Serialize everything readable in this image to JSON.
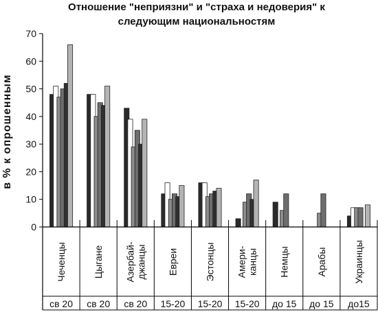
{
  "chart_data": {
    "type": "bar",
    "title_lines": [
      "Отношение \"неприязни\" и \"страха и недоверия\" к",
      "следующим национальностям"
    ],
    "ylabel": "в % к опрошенным",
    "ylim": [
      0,
      70
    ],
    "yticks": [
      0,
      10,
      20,
      30,
      40,
      50,
      60,
      70
    ],
    "grid": false,
    "categories": [
      "Чеченцы",
      "Цыгане",
      "Азербай-джанцы",
      "Евреи",
      "Эстонцы",
      "Амери-канцы",
      "Немцы",
      "Арабы",
      "Украинцы"
    ],
    "category_lines": [
      [
        "Чеченцы"
      ],
      [
        "Цыгане"
      ],
      [
        "Азербай-",
        "джанцы"
      ],
      [
        "Евреи"
      ],
      [
        "Эстонцы"
      ],
      [
        "Амери-",
        "канцы"
      ],
      [
        "Немцы"
      ],
      [
        "Арабы"
      ],
      [
        "Украинцы"
      ]
    ],
    "groups": [
      "св 20",
      "св 20",
      "св 20",
      "15-20",
      "15-20",
      "15-20",
      "до 15",
      "до 15",
      "до15"
    ],
    "series_colors": [
      "#2a2a2a",
      "#ffffff",
      "#8c8c8c",
      "#6e6e6e",
      "#303030",
      "#b4b4b4"
    ],
    "series": [
      {
        "values": [
          48,
          48,
          43,
          12,
          16,
          3,
          9,
          0,
          4
        ]
      },
      {
        "values": [
          51,
          48,
          39,
          16,
          16,
          0,
          0,
          0,
          7
        ]
      },
      {
        "values": [
          47,
          40,
          29,
          10,
          11,
          9,
          6,
          5,
          7
        ]
      },
      {
        "values": [
          50,
          45,
          35,
          12,
          12,
          12,
          12,
          12,
          7
        ]
      },
      {
        "values": [
          52,
          44,
          30,
          11,
          13,
          10,
          0,
          0,
          0
        ]
      },
      {
        "values": [
          66,
          51,
          39,
          15,
          14,
          17,
          0,
          0,
          8
        ]
      }
    ],
    "bar_style_note": "back light-grey and front shaded bars in each cluster"
  }
}
